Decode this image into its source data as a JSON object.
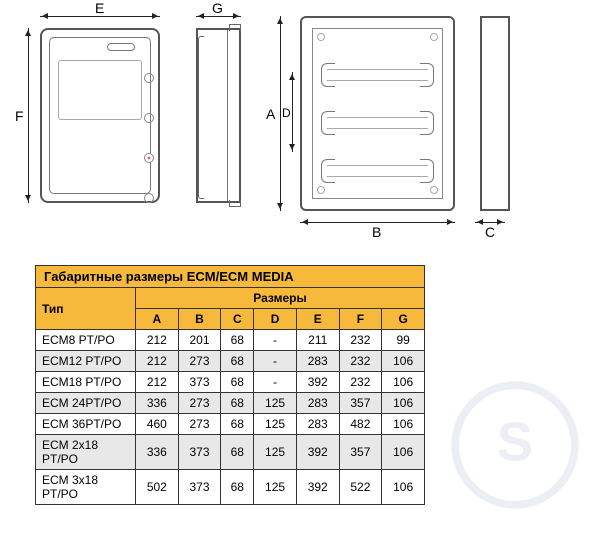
{
  "diagram_labels": {
    "E": "E",
    "F": "F",
    "G": "G",
    "A": "A",
    "B": "B",
    "C": "C",
    "D": "D"
  },
  "table": {
    "title": "Габаритные размеры ECM/ECM MEDIA",
    "type_header": "Тип",
    "size_header": "Размеры",
    "columns": [
      "A",
      "B",
      "C",
      "D",
      "E",
      "F",
      "G"
    ],
    "rows": [
      {
        "type": "ECM8 PT/PO",
        "v": [
          "212",
          "201",
          "68",
          "-",
          "211",
          "232",
          "99"
        ]
      },
      {
        "type": "ECM12 PT/PO",
        "v": [
          "212",
          "273",
          "68",
          "-",
          "283",
          "232",
          "106"
        ]
      },
      {
        "type": "ECM18 PT/PO",
        "v": [
          "212",
          "373",
          "68",
          "-",
          "392",
          "232",
          "106"
        ]
      },
      {
        "type": "ECM 24PT/PO",
        "v": [
          "336",
          "273",
          "68",
          "125",
          "283",
          "357",
          "106"
        ]
      },
      {
        "type": "ECM 36PT/PO",
        "v": [
          "460",
          "273",
          "68",
          "125",
          "283",
          "482",
          "106"
        ]
      },
      {
        "type": "ECM 2x18 PT/PO",
        "v": [
          "336",
          "373",
          "68",
          "125",
          "392",
          "357",
          "106"
        ]
      },
      {
        "type": "ECM 3x18 PT/PO",
        "v": [
          "502",
          "373",
          "68",
          "125",
          "392",
          "522",
          "106"
        ]
      }
    ]
  },
  "colors": {
    "header_bg": "#f6b93b",
    "row_alt": "#e8e8e8",
    "line": "#555555"
  }
}
